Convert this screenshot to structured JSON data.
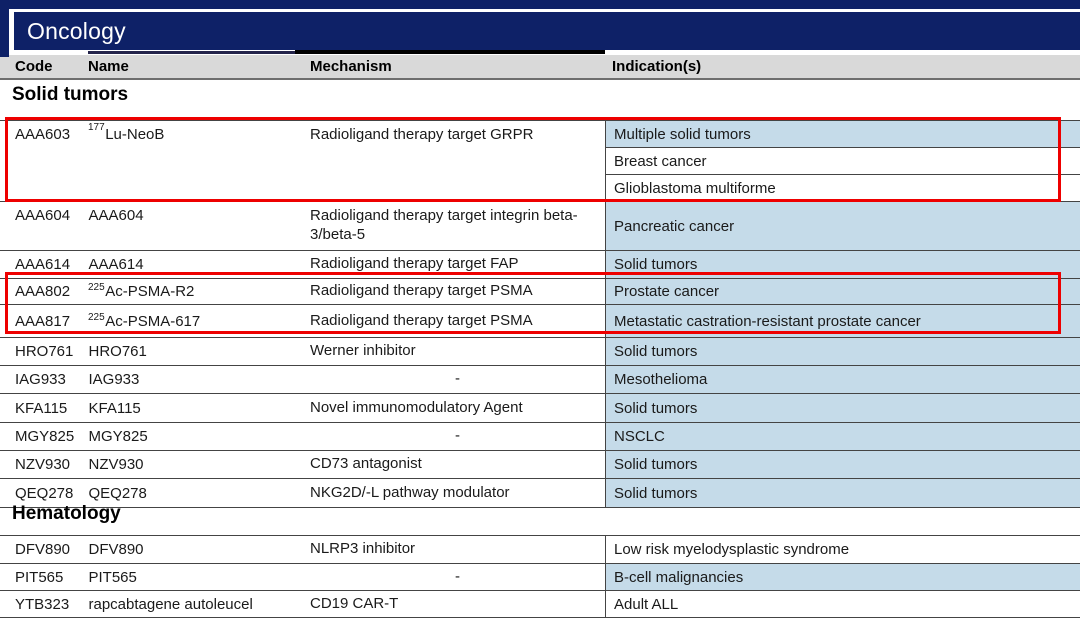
{
  "banner": {
    "title": "Oncology"
  },
  "table_headers": {
    "code": "Code",
    "name": "Name",
    "mechanism": "Mechanism",
    "indications": "Indication(s)"
  },
  "sections": [
    {
      "heading": "Solid tumors",
      "rows": [
        {
          "code": "AAA603",
          "name_sup": "177",
          "name": "Lu-NeoB",
          "mechanism": "Radioligand therapy target GRPR",
          "indications": [
            {
              "text": "Multiple solid tumors",
              "highlighted": true
            },
            {
              "text": "Breast cancer",
              "highlighted": false
            },
            {
              "text": "Glioblastoma multiforme",
              "highlighted": false
            }
          ]
        },
        {
          "code": "AAA604",
          "name_sup": "",
          "name": "AAA604",
          "mechanism": "Radioligand therapy target integrin beta-3/beta-5",
          "indications": [
            {
              "text": "Pancreatic cancer",
              "highlighted": true
            }
          ]
        },
        {
          "code": "AAA614",
          "name_sup": "",
          "name": "AAA614",
          "mechanism": "Radioligand therapy target FAP",
          "indications": [
            {
              "text": "Solid tumors",
              "highlighted": true
            }
          ]
        },
        {
          "code": "AAA802",
          "name_sup": "225",
          "name": "Ac-PSMA-R2",
          "mechanism": "Radioligand therapy target PSMA",
          "indications": [
            {
              "text": "Prostate cancer",
              "highlighted": true
            }
          ]
        },
        {
          "code": "AAA817",
          "name_sup": "225",
          "name": "Ac-PSMA-617",
          "mechanism": "Radioligand therapy target PSMA",
          "indications": [
            {
              "text": "Metastatic castration-resistant prostate cancer",
              "highlighted": true
            }
          ]
        },
        {
          "code": "HRO761",
          "name_sup": "",
          "name": "HRO761",
          "mechanism": "Werner inhibitor",
          "indications": [
            {
              "text": "Solid tumors",
              "highlighted": true
            }
          ]
        },
        {
          "code": "IAG933",
          "name_sup": "",
          "name": "IAG933",
          "mechanism": "-",
          "indications": [
            {
              "text": "Mesothelioma",
              "highlighted": true
            }
          ]
        },
        {
          "code": "KFA115",
          "name_sup": "",
          "name": "KFA115",
          "mechanism": "Novel immunomodulatory Agent",
          "indications": [
            {
              "text": "Solid tumors",
              "highlighted": true
            }
          ]
        },
        {
          "code": "MGY825",
          "name_sup": "",
          "name": "MGY825",
          "mechanism": "-",
          "indications": [
            {
              "text": "NSCLC",
              "highlighted": true
            }
          ]
        },
        {
          "code": "NZV930",
          "name_sup": "",
          "name": "NZV930",
          "mechanism": "CD73 antagonist",
          "indications": [
            {
              "text": "Solid tumors",
              "highlighted": true
            }
          ]
        },
        {
          "code": "QEQ278",
          "name_sup": "",
          "name": "QEQ278",
          "mechanism": "NKG2D/-L pathway modulator",
          "indications": [
            {
              "text": "Solid tumors",
              "highlighted": true
            }
          ]
        }
      ]
    },
    {
      "heading": "Hematology",
      "rows": [
        {
          "code": "DFV890",
          "name_sup": "",
          "name": "DFV890",
          "mechanism": "NLRP3 inhibitor",
          "indications": [
            {
              "text": "Low risk myelodysplastic syndrome",
              "highlighted": false
            }
          ]
        },
        {
          "code": "PIT565",
          "name_sup": "",
          "name": "PIT565",
          "mechanism": "-",
          "indications": [
            {
              "text": "B-cell malignancies",
              "highlighted": true
            }
          ]
        },
        {
          "code": "YTB323",
          "name_sup": "",
          "name": "rapcabtagene autoleucel",
          "mechanism": "CD19 CAR-T",
          "indications": [
            {
              "text": "Adult ALL",
              "highlighted": false
            }
          ]
        }
      ]
    }
  ],
  "annotations": {
    "highlight_box_color": "#ee0000",
    "highlight_boxes": [
      {
        "covers_rows": "AAA603"
      },
      {
        "covers_rows": "AAA802, AAA817"
      }
    ]
  },
  "colors": {
    "banner_navy": "#0e2167",
    "header_gray": "#d9d9d9",
    "indication_blue": "#c5dbe9",
    "table_border": "#444444"
  }
}
